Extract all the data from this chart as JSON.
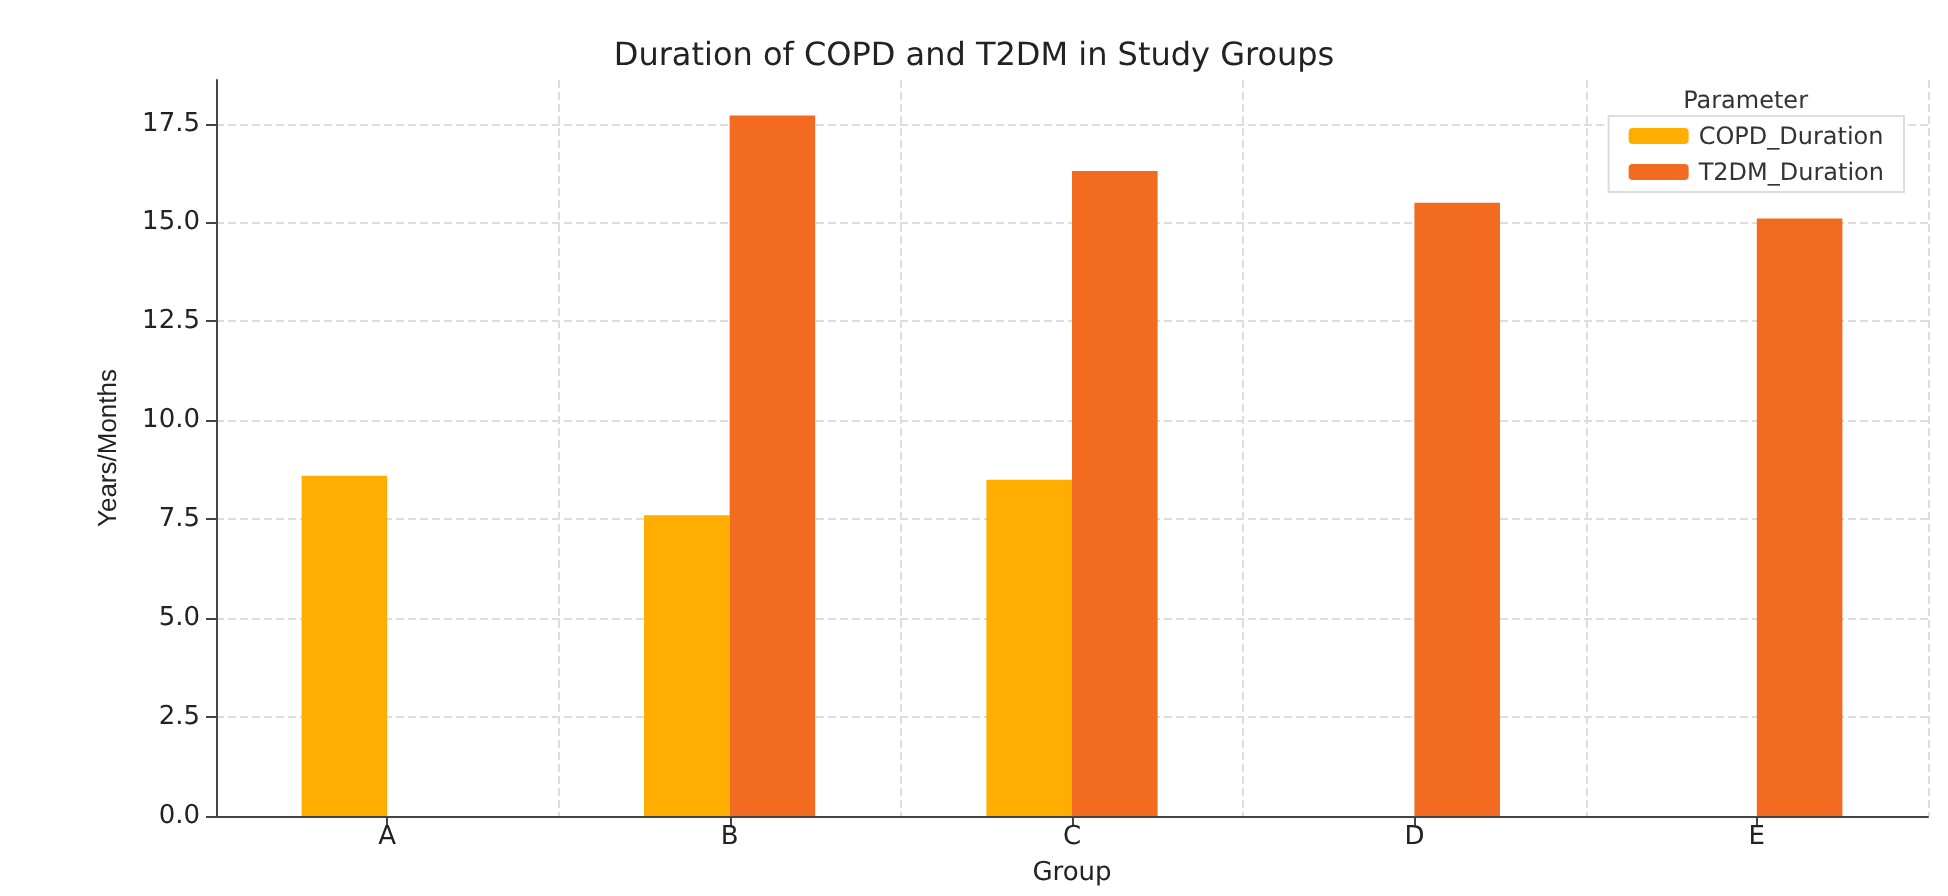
{
  "chart_data": {
    "type": "bar",
    "title": "Duration of COPD and T2DM in Study Groups",
    "xlabel": "Group",
    "ylabel": "Years/Months",
    "legend_title": "Parameter",
    "categories": [
      "A",
      "B",
      "C",
      "D",
      "E"
    ],
    "series": [
      {
        "name": "COPD_Duration",
        "color": "#ffae00",
        "values": [
          8.6,
          7.6,
          8.5,
          null,
          null
        ]
      },
      {
        "name": "T2DM_Duration",
        "color": "#f26b21",
        "values": [
          null,
          17.7,
          16.3,
          15.5,
          15.1
        ]
      }
    ],
    "ylim": [
      0,
      18.6
    ],
    "yticks": [
      {
        "value": 0,
        "label": "0.0"
      },
      {
        "value": 2.5,
        "label": "2.5"
      },
      {
        "value": 5,
        "label": "5.0"
      },
      {
        "value": 7.5,
        "label": "7.5"
      },
      {
        "value": 10,
        "label": "10.0"
      },
      {
        "value": 12.5,
        "label": "12.5"
      },
      {
        "value": 15,
        "label": "15.0"
      },
      {
        "value": 17.5,
        "label": "17.5"
      }
    ],
    "grid": true,
    "legend": "top right"
  }
}
